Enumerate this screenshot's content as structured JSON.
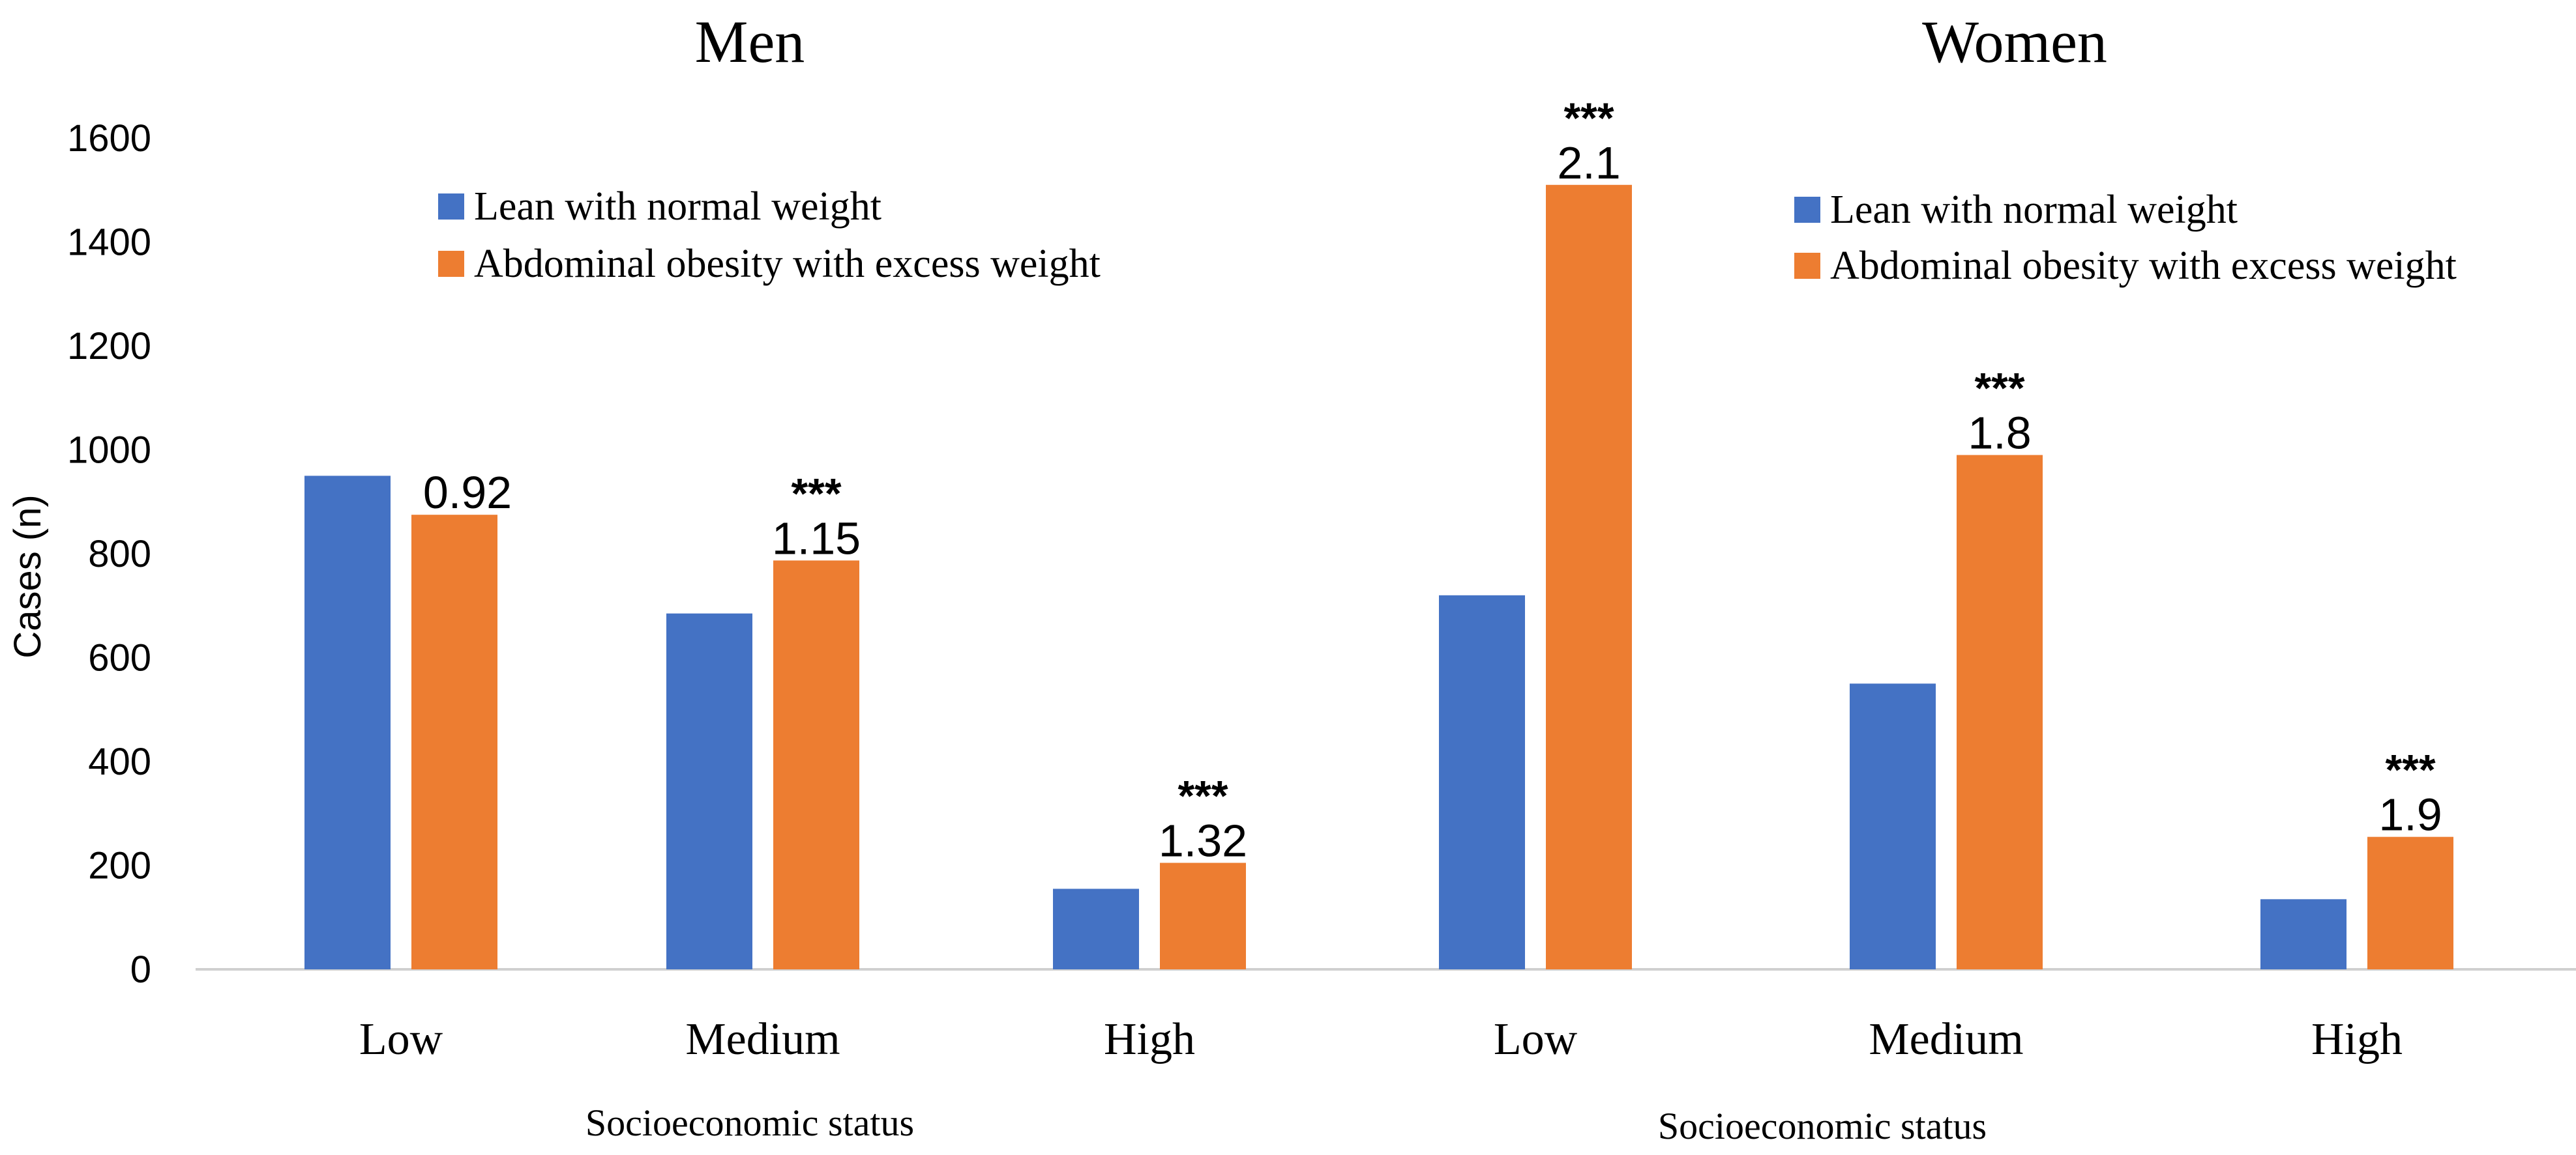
{
  "chart_data": {
    "type": "bar",
    "ylabel": "Cases (n)",
    "ylim": [
      0,
      1600
    ],
    "yticks": [
      0,
      200,
      400,
      600,
      800,
      1000,
      1200,
      1400,
      1600
    ],
    "grid": false,
    "colors": {
      "lean": "#4472C4",
      "obese": "#ED7D31"
    },
    "panels": [
      {
        "title": "Men",
        "xlabel": "Socioeconomic status",
        "legend": [
          "Lean with normal weight",
          "Abdominal obesity with excess weight"
        ],
        "categories": [
          "Low",
          "Medium",
          "High"
        ],
        "series": [
          {
            "name": "Lean with normal weight",
            "values": [
              950,
              685,
              155
            ]
          },
          {
            "name": "Abdominal obesity with excess weight",
            "values": [
              875,
              787,
              205
            ]
          }
        ],
        "ratios": [
          "0.92",
          "1.15",
          "1.32"
        ],
        "significance": [
          "",
          "***",
          "***"
        ]
      },
      {
        "title": "Women",
        "xlabel": "Socioeconomic status",
        "legend": [
          "Lean with normal weight",
          "Abdominal obesity with excess weight"
        ],
        "categories": [
          "Low",
          "Medium",
          "High"
        ],
        "series": [
          {
            "name": "Lean with normal weight",
            "values": [
              720,
              550,
              135
            ]
          },
          {
            "name": "Abdominal obesity with excess weight",
            "values": [
              1510,
              990,
              255
            ]
          }
        ],
        "ratios": [
          "2.1",
          "1.8",
          "1.9"
        ],
        "significance": [
          "***",
          "***",
          "***"
        ]
      }
    ]
  }
}
